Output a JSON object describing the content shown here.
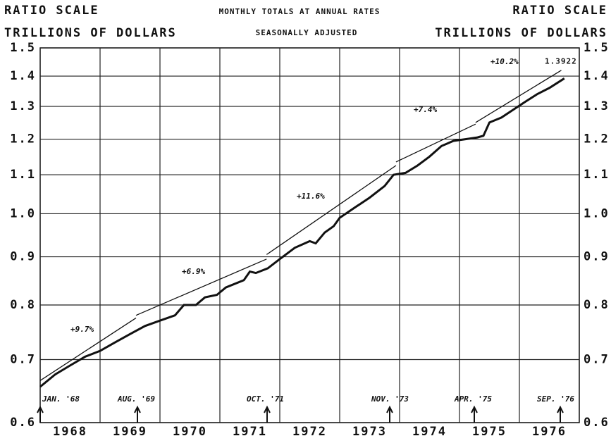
{
  "chart_data": {
    "type": "line",
    "title": "MONTHLY TOTALS AT ANNUAL RATES",
    "subtitle": "SEASONALLY ADJUSTED",
    "y_scale_label": "RATIO SCALE",
    "y_axis_label": "TRILLIONS OF DOLLARS",
    "log_scale": true,
    "grid": true,
    "color": "#111111",
    "categories": [
      "1968",
      "1969",
      "1970",
      "1971",
      "1972",
      "1973",
      "1974",
      "1975",
      "1976"
    ],
    "xlim": [
      1968,
      1977
    ],
    "ylim": [
      0.6,
      1.5
    ],
    "yticks": [
      0.6,
      0.7,
      0.8,
      0.9,
      {
        "value": 1,
        "label": "1.0"
      },
      1.1,
      1.2,
      1.3,
      1.4,
      1.5
    ],
    "series": [
      {
        "color": "#111111",
        "x": [
          1968.0,
          1968.25,
          1968.5,
          1968.75,
          1969.0,
          1969.25,
          1969.5,
          1969.75,
          1970.0,
          1970.25,
          1970.4,
          1970.6,
          1970.75,
          1970.95,
          1971.1,
          1971.4,
          1971.5,
          1971.6,
          1971.8,
          1972.0,
          1972.25,
          1972.5,
          1972.6,
          1972.75,
          1972.9,
          1973.0,
          1973.25,
          1973.5,
          1973.75,
          1973.9,
          1974.1,
          1974.3,
          1974.5,
          1974.7,
          1974.9,
          1975.1,
          1975.3,
          1975.4,
          1975.5,
          1975.7,
          1975.9,
          1976.1,
          1976.3,
          1976.5,
          1976.75
        ],
        "values": [
          0.655,
          0.675,
          0.69,
          0.705,
          0.715,
          0.73,
          0.745,
          0.76,
          0.77,
          0.78,
          0.8,
          0.8,
          0.815,
          0.82,
          0.835,
          0.85,
          0.868,
          0.865,
          0.875,
          0.895,
          0.92,
          0.935,
          0.93,
          0.955,
          0.97,
          0.99,
          1.015,
          1.04,
          1.07,
          1.1,
          1.105,
          1.125,
          1.15,
          1.18,
          1.195,
          1.2,
          1.205,
          1.21,
          1.25,
          1.265,
          1.29,
          1.315,
          1.34,
          1.36,
          1.3922
        ],
        "value_labels": [
          null,
          null,
          null,
          null,
          null,
          null,
          null,
          null,
          null,
          null,
          null,
          null,
          null,
          null,
          null,
          null,
          null,
          null,
          null,
          null,
          null,
          null,
          null,
          null,
          null,
          null,
          null,
          null,
          null,
          null,
          null,
          null,
          null,
          null,
          null,
          null,
          null,
          null,
          null,
          null,
          null,
          null,
          null,
          null,
          "1.3922"
        ]
      },
      {
        "color": "#111111",
        "x": [
          1968.0,
          1969.6,
          1969.6,
          1969.6,
          1971.78,
          1971.78,
          1971.78,
          1973.94,
          1973.94,
          1973.94,
          1975.27,
          1975.27,
          1975.27,
          1976.7
        ],
        "values": [
          0.665,
          0.775,
          null,
          0.78,
          0.895,
          null,
          0.905,
          1.125,
          null,
          1.135,
          1.245,
          null,
          1.25,
          1.42
        ]
      }
    ],
    "annotations": [
      "+9.7%",
      "+6.9%",
      "+11.6%",
      "+7.4%",
      "+10.2%"
    ],
    "markers": [
      "JAN. '68",
      "AUG. '69",
      "OCT. '71",
      "NOV. '73",
      "APR. '75",
      "SEP. '76"
    ]
  }
}
